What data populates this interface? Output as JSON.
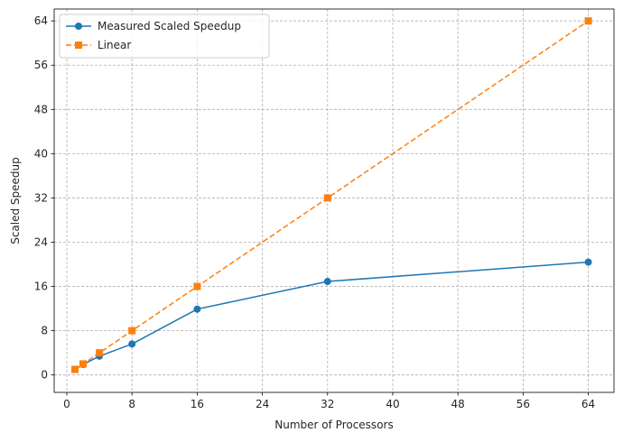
{
  "chart_data": {
    "type": "line",
    "title": "",
    "xlabel": "Number of Processors",
    "ylabel": "Scaled Speedup",
    "xlim": [
      -1.55,
      67.15
    ],
    "ylim": [
      -3.15,
      66.15
    ],
    "xticks": [
      0,
      8,
      16,
      24,
      32,
      40,
      48,
      56,
      64
    ],
    "yticks": [
      0,
      8,
      16,
      24,
      32,
      40,
      48,
      56,
      64
    ],
    "grid": true,
    "legend_position": "top-left",
    "series": [
      {
        "name": "Measured Scaled Speedup",
        "x": [
          1,
          2,
          4,
          8,
          16,
          32,
          64
        ],
        "values": [
          1.0,
          1.9,
          3.4,
          5.6,
          11.9,
          16.9,
          20.4
        ],
        "color": "#1f77b4",
        "marker": "circle",
        "linestyle": "solid"
      },
      {
        "name": "Linear",
        "x": [
          1,
          2,
          4,
          8,
          16,
          32,
          64
        ],
        "values": [
          1,
          2,
          4,
          8,
          16,
          32,
          64
        ],
        "color": "#ff7f0e",
        "marker": "square",
        "linestyle": "dashed"
      }
    ]
  }
}
